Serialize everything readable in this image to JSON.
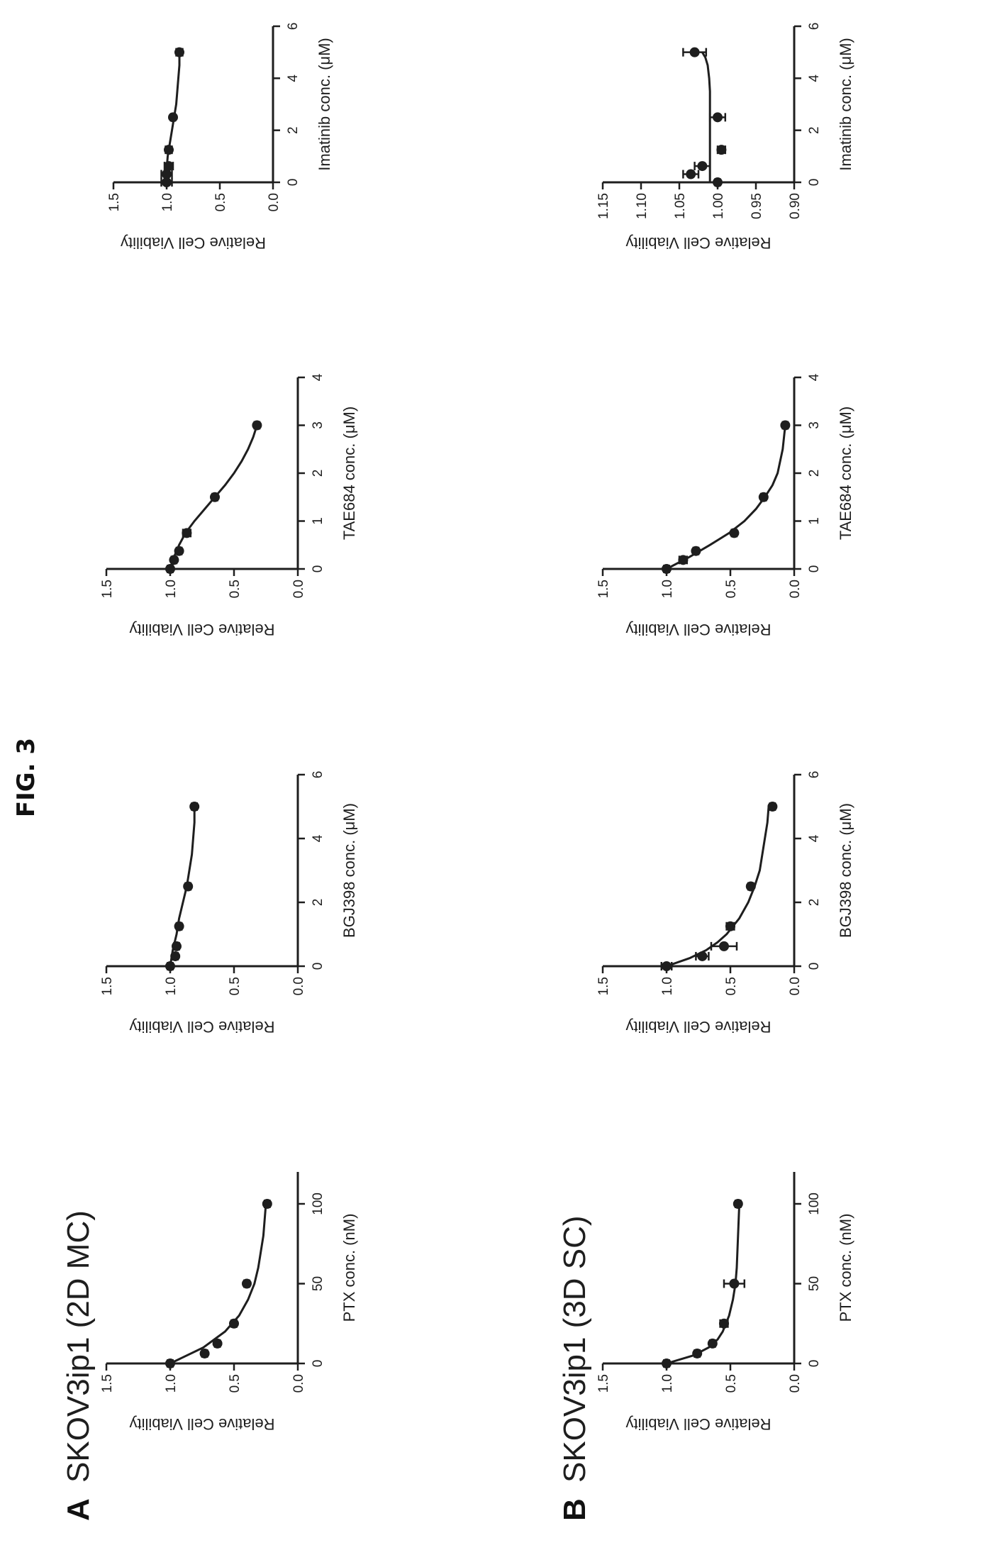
{
  "figure_title": "FIG. 3",
  "panels": [
    {
      "letter": "A",
      "label": "SKOV3ip1 (2D MC)"
    },
    {
      "letter": "B",
      "label": "SKOV3ip1 (3D SC)"
    }
  ],
  "chart_data": [
    {
      "type": "scatter",
      "panel": "A",
      "xlabel": "PTX conc. (nM)",
      "ylabel": "Relative Cell Viability",
      "xlim": [
        0,
        120
      ],
      "ylim": [
        0.0,
        1.5
      ],
      "xticks": [
        0,
        50,
        100
      ],
      "yticks": [
        0.0,
        0.5,
        1.0,
        1.5
      ],
      "xtick_labels": [
        "0",
        "50",
        "100"
      ],
      "ytick_labels": [
        "0.0",
        "0.5",
        "1.0",
        "1.5"
      ],
      "points": [
        {
          "x": 0,
          "y": 1.0,
          "err": 0.02
        },
        {
          "x": 6.25,
          "y": 0.73,
          "err": 0.02
        },
        {
          "x": 12.5,
          "y": 0.63,
          "err": 0.02
        },
        {
          "x": 25,
          "y": 0.5,
          "err": 0.02
        },
        {
          "x": 50,
          "y": 0.4,
          "err": 0.02
        },
        {
          "x": 100,
          "y": 0.24,
          "err": 0.02
        }
      ],
      "fit": {
        "x": [
          0,
          10,
          20,
          30,
          40,
          50,
          60,
          70,
          80,
          90,
          100
        ],
        "y": [
          1.0,
          0.74,
          0.57,
          0.46,
          0.39,
          0.34,
          0.31,
          0.29,
          0.27,
          0.26,
          0.25
        ]
      }
    },
    {
      "type": "scatter",
      "panel": "A",
      "xlabel": "BGJ398 conc. (μM)",
      "ylabel": "Relative Cell Viability",
      "xlim": [
        0,
        6
      ],
      "ylim": [
        0.0,
        1.5
      ],
      "xticks": [
        0,
        2,
        4,
        6
      ],
      "yticks": [
        0.0,
        0.5,
        1.0,
        1.5
      ],
      "xtick_labels": [
        "0",
        "2",
        "4",
        "6"
      ],
      "ytick_labels": [
        "0.0",
        "0.5",
        "1.0",
        "1.5"
      ],
      "points": [
        {
          "x": 0,
          "y": 1.0,
          "err": 0.02
        },
        {
          "x": 0.3125,
          "y": 0.96,
          "err": 0.02
        },
        {
          "x": 0.625,
          "y": 0.95,
          "err": 0.02
        },
        {
          "x": 1.25,
          "y": 0.93,
          "err": 0.02
        },
        {
          "x": 2.5,
          "y": 0.86,
          "err": 0.02
        },
        {
          "x": 5,
          "y": 0.81,
          "err": 0.02
        }
      ],
      "fit": {
        "x": [
          0,
          0.5,
          1,
          1.5,
          2,
          2.5,
          3,
          3.5,
          4,
          4.5,
          5
        ],
        "y": [
          1.0,
          0.98,
          0.95,
          0.93,
          0.9,
          0.87,
          0.85,
          0.83,
          0.82,
          0.81,
          0.81
        ]
      }
    },
    {
      "type": "scatter",
      "panel": "A",
      "xlabel": "TAE684 conc. (μM)",
      "ylabel": "Relative Cell Viability",
      "xlim": [
        0,
        4
      ],
      "ylim": [
        0.0,
        1.5
      ],
      "xticks": [
        0,
        1,
        2,
        3,
        4
      ],
      "yticks": [
        0.0,
        0.5,
        1.0,
        1.5
      ],
      "xtick_labels": [
        "0",
        "1",
        "2",
        "3",
        "4"
      ],
      "ytick_labels": [
        "0.0",
        "0.5",
        "1.0",
        "1.5"
      ],
      "points": [
        {
          "x": 0,
          "y": 1.0,
          "err": 0.02
        },
        {
          "x": 0.1875,
          "y": 0.97,
          "err": 0.02
        },
        {
          "x": 0.375,
          "y": 0.93,
          "err": 0.02
        },
        {
          "x": 0.75,
          "y": 0.87,
          "err": 0.03
        },
        {
          "x": 1.5,
          "y": 0.65,
          "err": 0.02
        },
        {
          "x": 3,
          "y": 0.32,
          "err": 0.02
        }
      ],
      "fit": {
        "x": [
          0,
          0.25,
          0.5,
          0.75,
          1,
          1.25,
          1.5,
          1.75,
          2,
          2.25,
          2.5,
          2.75,
          3
        ],
        "y": [
          1.0,
          0.97,
          0.93,
          0.88,
          0.81,
          0.73,
          0.65,
          0.57,
          0.5,
          0.44,
          0.39,
          0.35,
          0.32
        ]
      }
    },
    {
      "type": "scatter",
      "panel": "A",
      "xlabel": "Imatinib conc. (μM)",
      "ylabel": "Relative Cell Viability",
      "xlim": [
        0,
        6
      ],
      "ylim": [
        0.0,
        1.5
      ],
      "xticks": [
        0,
        2,
        4,
        6
      ],
      "yticks": [
        0.0,
        0.5,
        1.0,
        1.5
      ],
      "xtick_labels": [
        "0",
        "2",
        "4",
        "6"
      ],
      "ytick_labels": [
        "0.0",
        "0.5",
        "1.0",
        "1.5"
      ],
      "points": [
        {
          "x": 0,
          "y": 1.0,
          "err": 0.05
        },
        {
          "x": 0.3125,
          "y": 1.0,
          "err": 0.05
        },
        {
          "x": 0.625,
          "y": 0.98,
          "err": 0.04
        },
        {
          "x": 1.25,
          "y": 0.98,
          "err": 0.03
        },
        {
          "x": 2.5,
          "y": 0.94,
          "err": 0.02
        },
        {
          "x": 5,
          "y": 0.88,
          "err": 0.03
        }
      ],
      "fit": {
        "x": [
          0,
          0.5,
          1,
          1.5,
          2,
          2.5,
          3,
          3.5,
          4,
          4.5,
          5
        ],
        "y": [
          1.01,
          1.0,
          0.99,
          0.97,
          0.95,
          0.93,
          0.91,
          0.9,
          0.89,
          0.88,
          0.88
        ]
      }
    },
    {
      "type": "scatter",
      "panel": "B",
      "xlabel": "PTX conc. (nM)",
      "ylabel": "Relative Cell Viability",
      "xlim": [
        0,
        120
      ],
      "ylim": [
        0.0,
        1.5
      ],
      "xticks": [
        0,
        50,
        100
      ],
      "yticks": [
        0.0,
        0.5,
        1.0,
        1.5
      ],
      "xtick_labels": [
        "0",
        "50",
        "100"
      ],
      "ytick_labels": [
        "0.0",
        "0.5",
        "1.0",
        "1.5"
      ],
      "points": [
        {
          "x": 0,
          "y": 1.0,
          "err": 0.02
        },
        {
          "x": 6.25,
          "y": 0.76,
          "err": 0.02
        },
        {
          "x": 12.5,
          "y": 0.64,
          "err": 0.02
        },
        {
          "x": 25,
          "y": 0.55,
          "err": 0.03
        },
        {
          "x": 50,
          "y": 0.47,
          "err": 0.08
        },
        {
          "x": 100,
          "y": 0.44,
          "err": 0.02
        }
      ],
      "fit": {
        "x": [
          0,
          5,
          10,
          15,
          20,
          30,
          40,
          50,
          60,
          80,
          100
        ],
        "y": [
          1.0,
          0.79,
          0.67,
          0.6,
          0.56,
          0.51,
          0.48,
          0.46,
          0.45,
          0.44,
          0.43
        ]
      }
    },
    {
      "type": "scatter",
      "panel": "B",
      "xlabel": "BGJ398 conc. (μM)",
      "ylabel": "Relative Cell Viability",
      "xlim": [
        0,
        6
      ],
      "ylim": [
        0.0,
        1.5
      ],
      "xticks": [
        0,
        2,
        4,
        6
      ],
      "yticks": [
        0.0,
        0.5,
        1.0,
        1.5
      ],
      "xtick_labels": [
        "0",
        "2",
        "4",
        "6"
      ],
      "ytick_labels": [
        "0.0",
        "0.5",
        "1.0",
        "1.5"
      ],
      "points": [
        {
          "x": 0,
          "y": 1.0,
          "err": 0.04
        },
        {
          "x": 0.3125,
          "y": 0.72,
          "err": 0.05
        },
        {
          "x": 0.625,
          "y": 0.55,
          "err": 0.1
        },
        {
          "x": 1.25,
          "y": 0.5,
          "err": 0.03
        },
        {
          "x": 2.5,
          "y": 0.34,
          "err": 0.02
        },
        {
          "x": 5,
          "y": 0.17,
          "err": 0.02
        }
      ],
      "fit": {
        "x": [
          0,
          0.25,
          0.5,
          0.75,
          1,
          1.5,
          2,
          2.5,
          3,
          3.5,
          4,
          4.5,
          5
        ],
        "y": [
          1.0,
          0.82,
          0.69,
          0.6,
          0.53,
          0.43,
          0.36,
          0.31,
          0.27,
          0.25,
          0.23,
          0.21,
          0.2
        ]
      }
    },
    {
      "type": "scatter",
      "panel": "B",
      "xlabel": "TAE684 conc. (μM)",
      "ylabel": "Relative Cell Viability",
      "xlim": [
        0,
        4
      ],
      "ylim": [
        0.0,
        1.5
      ],
      "xticks": [
        0,
        1,
        2,
        3,
        4
      ],
      "yticks": [
        0.0,
        0.5,
        1.0,
        1.5
      ],
      "xtick_labels": [
        "0",
        "1",
        "2",
        "3",
        "4"
      ],
      "ytick_labels": [
        "0.0",
        "0.5",
        "1.0",
        "1.5"
      ],
      "points": [
        {
          "x": 0,
          "y": 1.0,
          "err": 0.02
        },
        {
          "x": 0.1875,
          "y": 0.87,
          "err": 0.03
        },
        {
          "x": 0.375,
          "y": 0.77,
          "err": 0.02
        },
        {
          "x": 0.75,
          "y": 0.47,
          "err": 0.02
        },
        {
          "x": 1.5,
          "y": 0.24,
          "err": 0.02
        },
        {
          "x": 3,
          "y": 0.07,
          "err": 0.02
        }
      ],
      "fit": {
        "x": [
          0,
          0.25,
          0.5,
          0.75,
          1,
          1.25,
          1.5,
          1.75,
          2,
          2.5,
          3
        ],
        "y": [
          1.0,
          0.82,
          0.66,
          0.51,
          0.39,
          0.3,
          0.23,
          0.17,
          0.13,
          0.09,
          0.07
        ]
      }
    },
    {
      "type": "scatter",
      "panel": "B",
      "xlabel": "Imatinib conc. (μM)",
      "ylabel": "Relative Cell Viability",
      "xlim": [
        0,
        6
      ],
      "ylim": [
        0.9,
        1.15
      ],
      "xticks": [
        0,
        2,
        4,
        6
      ],
      "yticks": [
        0.9,
        0.95,
        1.0,
        1.05,
        1.1,
        1.15
      ],
      "xtick_labels": [
        "0",
        "2",
        "4",
        "6"
      ],
      "ytick_labels": [
        "0.90",
        "0.95",
        "1.00",
        "1.05",
        "1.10",
        "1.15"
      ],
      "points": [
        {
          "x": 0,
          "y": 1.0,
          "err": 0.003
        },
        {
          "x": 0.3125,
          "y": 1.035,
          "err": 0.01
        },
        {
          "x": 0.625,
          "y": 1.02,
          "err": 0.01
        },
        {
          "x": 1.25,
          "y": 0.995,
          "err": 0.005
        },
        {
          "x": 2.5,
          "y": 1.0,
          "err": 0.01
        },
        {
          "x": 5,
          "y": 1.03,
          "err": 0.015
        }
      ],
      "fit": {
        "x": [
          0,
          0.5,
          1,
          1.5,
          2,
          2.5,
          3,
          3.5,
          4,
          4.5,
          4.8,
          5
        ],
        "y": [
          1.01,
          1.01,
          1.01,
          1.01,
          1.01,
          1.01,
          1.01,
          1.01,
          1.011,
          1.013,
          1.016,
          1.02
        ]
      }
    }
  ]
}
